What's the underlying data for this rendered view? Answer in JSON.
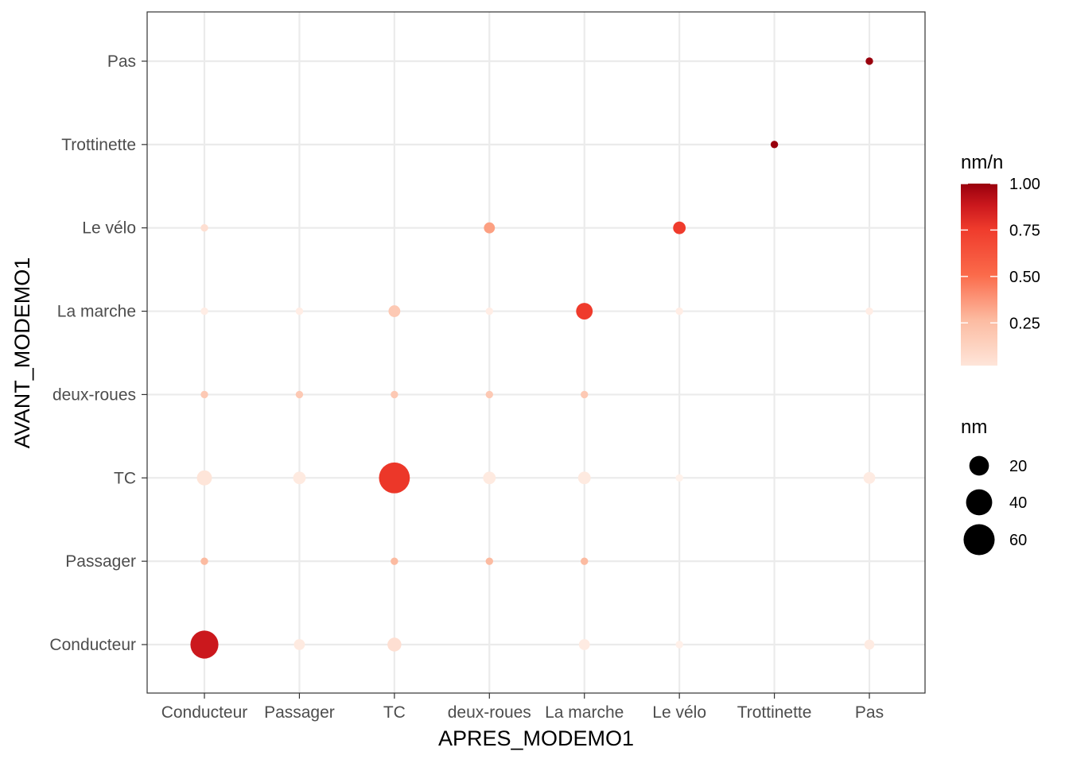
{
  "chart_data": {
    "type": "scatter",
    "title": "",
    "xlabel": "APRES_MODEMO1",
    "ylabel": "AVANT_MODEMO1",
    "x_categories": [
      "Conducteur",
      "Passager",
      "TC",
      "deux-roues",
      "La marche",
      "Le vélo",
      "Trottinette",
      "Pas"
    ],
    "y_categories": [
      "Conducteur",
      "Passager",
      "TC",
      "deux-roues",
      "La marche",
      "Le vélo",
      "Trottinette",
      "Pas"
    ],
    "grid": true,
    "color_legend": {
      "title": "nm/n",
      "ticks": [
        1.0,
        0.75,
        0.5,
        0.25
      ],
      "tick_labels": [
        "1.00",
        "0.75",
        "0.50",
        "0.25"
      ],
      "range": [
        0.02,
        1.0
      ],
      "low_color": "#fee5d9",
      "mid_color": "#ef3b2c",
      "high_color": "#99000d"
    },
    "size_legend": {
      "title": "nm",
      "values": [
        20,
        40,
        60
      ],
      "labels": [
        "20",
        "40",
        "60"
      ]
    },
    "legend_position": "right",
    "points": [
      {
        "x": "Pas",
        "y": "Pas",
        "nm": 1,
        "ratio": 1.0
      },
      {
        "x": "Trottinette",
        "y": "Trottinette",
        "nm": 1,
        "ratio": 1.0
      },
      {
        "x": "Conducteur",
        "y": "Le vélo",
        "nm": 1,
        "ratio": 0.12
      },
      {
        "x": "deux-roues",
        "y": "Le vélo",
        "nm": 4,
        "ratio": 0.35
      },
      {
        "x": "Le vélo",
        "y": "Le vélo",
        "nm": 6,
        "ratio": 0.55
      },
      {
        "x": "Conducteur",
        "y": "La marche",
        "nm": 1,
        "ratio": 0.05
      },
      {
        "x": "Passager",
        "y": "La marche",
        "nm": 1,
        "ratio": 0.05
      },
      {
        "x": "TC",
        "y": "La marche",
        "nm": 5,
        "ratio": 0.2
      },
      {
        "x": "deux-roues",
        "y": "La marche",
        "nm": 1,
        "ratio": 0.05
      },
      {
        "x": "La marche",
        "y": "La marche",
        "nm": 13,
        "ratio": 0.55
      },
      {
        "x": "Le vélo",
        "y": "La marche",
        "nm": 1,
        "ratio": 0.05
      },
      {
        "x": "Pas",
        "y": "La marche",
        "nm": 1,
        "ratio": 0.05
      },
      {
        "x": "Conducteur",
        "y": "deux-roues",
        "nm": 1,
        "ratio": 0.2
      },
      {
        "x": "Passager",
        "y": "deux-roues",
        "nm": 1,
        "ratio": 0.2
      },
      {
        "x": "TC",
        "y": "deux-roues",
        "nm": 1,
        "ratio": 0.2
      },
      {
        "x": "deux-roues",
        "y": "deux-roues",
        "nm": 1,
        "ratio": 0.2
      },
      {
        "x": "La marche",
        "y": "deux-roues",
        "nm": 1,
        "ratio": 0.2
      },
      {
        "x": "Conducteur",
        "y": "TC",
        "nm": 10,
        "ratio": 0.1
      },
      {
        "x": "Passager",
        "y": "TC",
        "nm": 6,
        "ratio": 0.07
      },
      {
        "x": "TC",
        "y": "TC",
        "nm": 59,
        "ratio": 0.6
      },
      {
        "x": "deux-roues",
        "y": "TC",
        "nm": 6,
        "ratio": 0.07
      },
      {
        "x": "La marche",
        "y": "TC",
        "nm": 6,
        "ratio": 0.07
      },
      {
        "x": "Le vélo",
        "y": "TC",
        "nm": 1,
        "ratio": 0.02
      },
      {
        "x": "Pas",
        "y": "TC",
        "nm": 5,
        "ratio": 0.06
      },
      {
        "x": "Conducteur",
        "y": "Passager",
        "nm": 1,
        "ratio": 0.25
      },
      {
        "x": "TC",
        "y": "Passager",
        "nm": 1,
        "ratio": 0.25
      },
      {
        "x": "deux-roues",
        "y": "Passager",
        "nm": 1,
        "ratio": 0.25
      },
      {
        "x": "La marche",
        "y": "Passager",
        "nm": 1,
        "ratio": 0.25
      },
      {
        "x": "Conducteur",
        "y": "Conducteur",
        "nm": 47,
        "ratio": 0.8
      },
      {
        "x": "Passager",
        "y": "Conducteur",
        "nm": 4,
        "ratio": 0.07
      },
      {
        "x": "TC",
        "y": "Conducteur",
        "nm": 8,
        "ratio": 0.12
      },
      {
        "x": "La marche",
        "y": "Conducteur",
        "nm": 4,
        "ratio": 0.06
      },
      {
        "x": "Le vélo",
        "y": "Conducteur",
        "nm": 1,
        "ratio": 0.03
      },
      {
        "x": "Pas",
        "y": "Conducteur",
        "nm": 3,
        "ratio": 0.06
      }
    ]
  }
}
